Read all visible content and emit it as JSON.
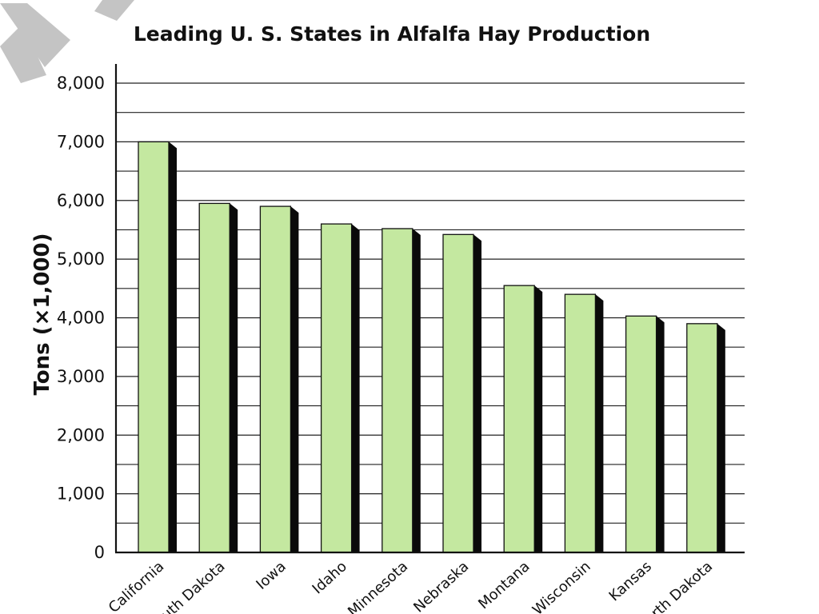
{
  "colors": {
    "bar_fill": "#c4e8a0",
    "bar_shadow": "#0a0a0a",
    "grid": "#222222",
    "watermark": "#c4c4c4"
  },
  "chart_data": {
    "type": "bar",
    "title": "Leading U. S. States in Alfalfa Hay Production",
    "xlabel": "",
    "ylabel": "Tons (×1,000)",
    "categories": [
      "California",
      "South Dakota",
      "Iowa",
      "Idaho",
      "Minnesota",
      "Nebraska",
      "Montana",
      "Wisconsin",
      "Kansas",
      "North Dakota"
    ],
    "values": [
      7000,
      5950,
      5900,
      5600,
      5520,
      5420,
      4550,
      4400,
      4030,
      3900
    ],
    "ylim": [
      0,
      8000
    ],
    "yticks": [
      0,
      1000,
      2000,
      3000,
      4000,
      5000,
      6000,
      7000,
      8000
    ],
    "ytick_labels": [
      "0",
      "1,000",
      "2,000",
      "3,000",
      "4,000",
      "5,000",
      "6,000",
      "7,000",
      "8,000"
    ],
    "grid": true,
    "legend": "none"
  }
}
